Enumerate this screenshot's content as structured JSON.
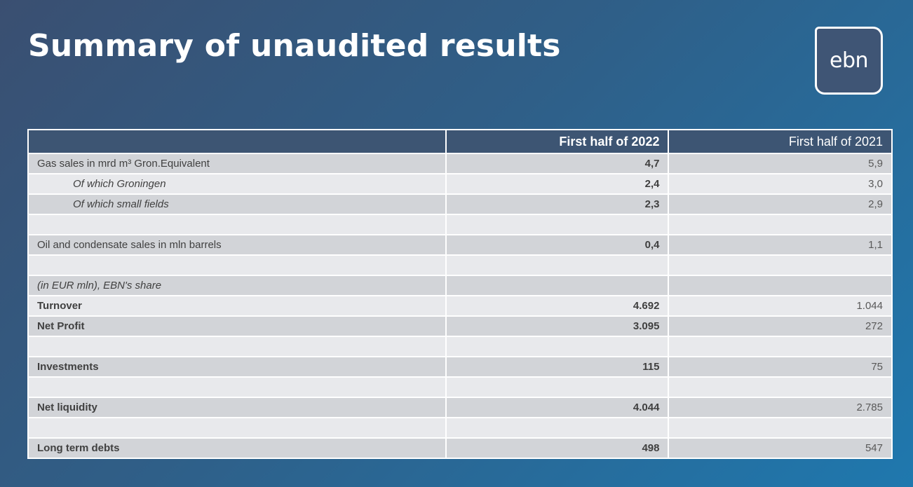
{
  "title": "Summary of unaudited results",
  "logo": {
    "text": "ebn"
  },
  "table": {
    "headers": [
      "",
      "First half of 2022",
      "First half of 2021"
    ],
    "rows": [
      {
        "label": "Gas sales in mrd m³ Gron.Equivalent",
        "v2022": "4,7",
        "v2021": "5,9"
      },
      {
        "label": "Of which Groningen",
        "v2022": "2,4",
        "v2021": "3,0"
      },
      {
        "label": "Of which small fields",
        "v2022": "2,3",
        "v2021": "2,9"
      },
      {
        "label": "",
        "v2022": "",
        "v2021": ""
      },
      {
        "label": "Oil and condensate sales in mln barrels",
        "v2022": "0,4",
        "v2021": "1,1"
      },
      {
        "label": "",
        "v2022": "",
        "v2021": ""
      },
      {
        "label": "(in EUR mln), EBN's share",
        "v2022": "",
        "v2021": ""
      },
      {
        "label": "Turnover",
        "v2022": "4.692",
        "v2021": "1.044"
      },
      {
        "label": "Net Profit",
        "v2022": "3.095",
        "v2021": "272"
      },
      {
        "label": "",
        "v2022": "",
        "v2021": ""
      },
      {
        "label": "Investments",
        "v2022": "115",
        "v2021": "75"
      },
      {
        "label": "",
        "v2022": "",
        "v2021": ""
      },
      {
        "label": "Net liquidity",
        "v2022": "4.044",
        "v2021": "2.785"
      },
      {
        "label": "",
        "v2022": "",
        "v2021": ""
      },
      {
        "label": "Long term debts",
        "v2022": "498",
        "v2021": "547"
      }
    ]
  }
}
